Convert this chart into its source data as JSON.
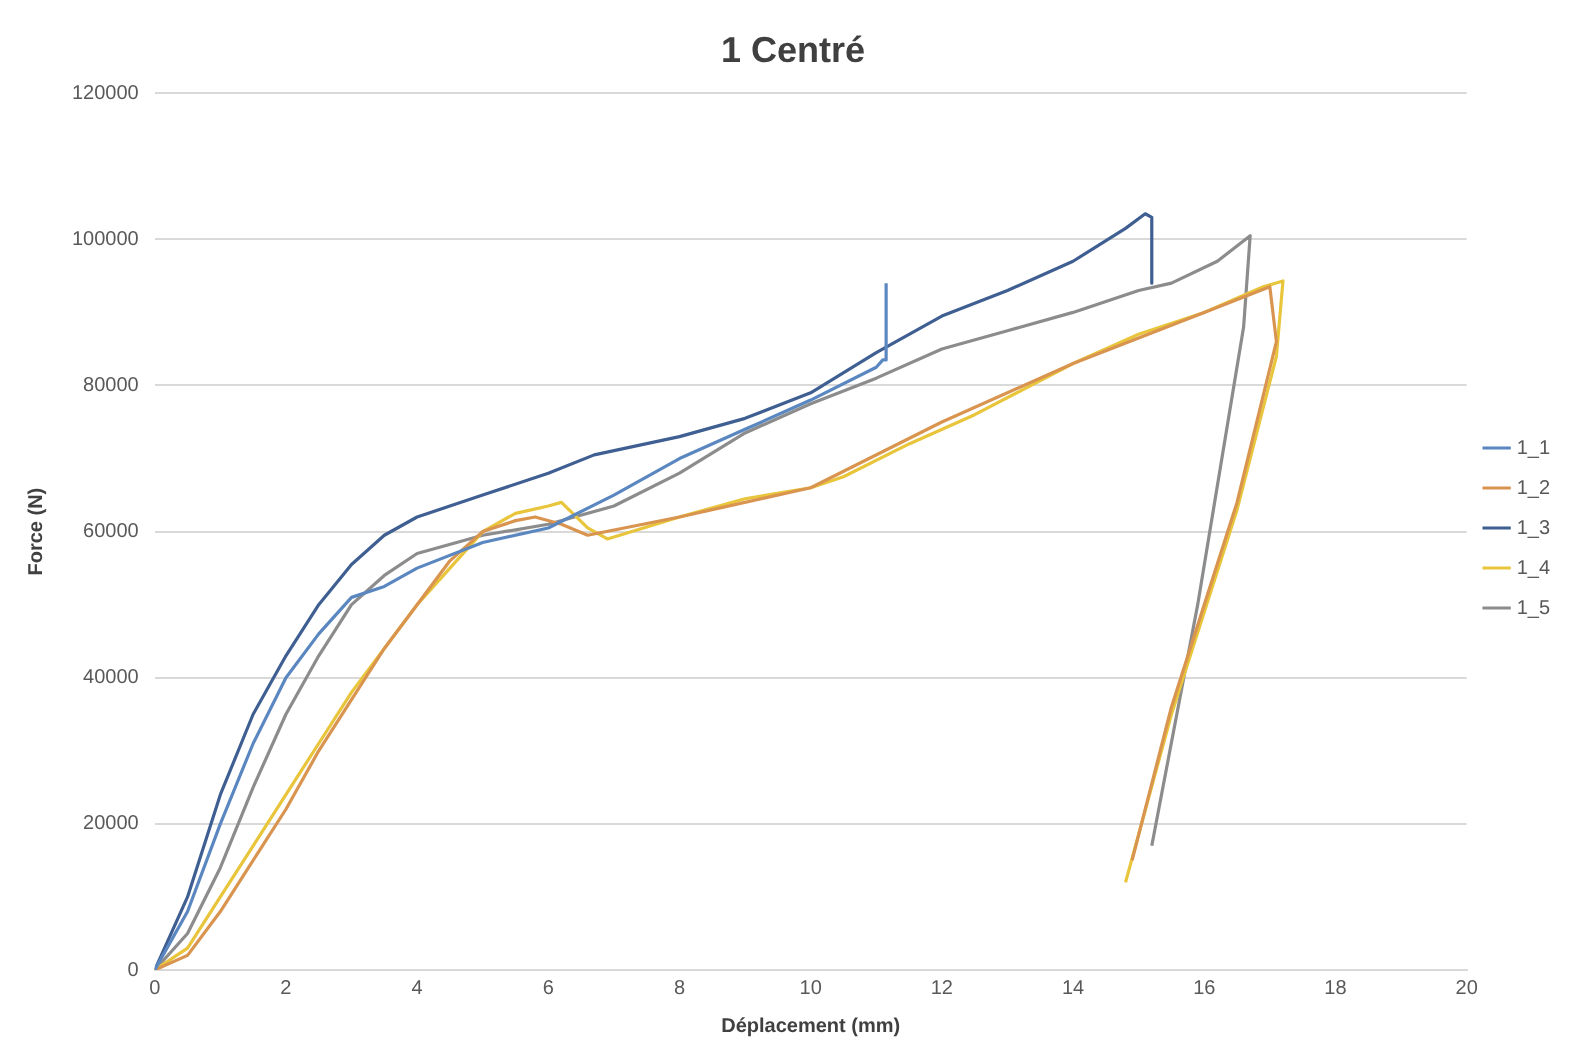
{
  "chart_data": {
    "type": "line",
    "title": "1 Centré",
    "xlabel": "Déplacement (mm)",
    "ylabel": "Force (N)",
    "xlim": [
      0,
      20
    ],
    "xticks": [
      0,
      2,
      4,
      6,
      8,
      10,
      12,
      14,
      16,
      18,
      20
    ],
    "ylim": [
      0,
      120000
    ],
    "yticks": [
      0,
      20000,
      40000,
      60000,
      80000,
      100000,
      120000
    ],
    "grid": "y",
    "legend": "right",
    "marker": "none",
    "line_style": "solid",
    "series": [
      {
        "name": "1_1",
        "color": "#5b87c0",
        "x": [
          0,
          0.5,
          1,
          1.5,
          2,
          2.5,
          3,
          3.5,
          4,
          5,
          6,
          7,
          8,
          9,
          10,
          11,
          11.1,
          11.15,
          11.15
        ],
        "values": [
          0,
          8000,
          20000,
          31000,
          40000,
          46000,
          51000,
          52500,
          55000,
          58500,
          60500,
          65000,
          70000,
          74000,
          78000,
          82500,
          83500,
          83500,
          94000
        ]
      },
      {
        "name": "1_2",
        "color": "#d9944f",
        "x": [
          0,
          0.5,
          1,
          1.5,
          2,
          2.5,
          3,
          3.5,
          4,
          4.5,
          5,
          5.5,
          5.8,
          6.2,
          6.6,
          8,
          10,
          12,
          14,
          16,
          17,
          17.1,
          16.5,
          15.5,
          14.9
        ],
        "values": [
          0,
          2000,
          8000,
          15000,
          22000,
          30000,
          37000,
          44000,
          50000,
          56000,
          60000,
          61500,
          62000,
          61000,
          59500,
          62000,
          66000,
          75000,
          83000,
          90000,
          93500,
          86000,
          64000,
          36000,
          15000
        ]
      },
      {
        "name": "1_3",
        "color": "#3f5f92",
        "x": [
          0,
          0.5,
          1,
          1.5,
          2,
          2.5,
          3,
          3.5,
          4,
          4.5,
          5,
          6,
          6.7,
          8,
          9,
          10,
          11,
          12,
          13,
          14,
          14.8,
          15.1,
          15.2,
          15.2
        ],
        "values": [
          0,
          10000,
          24000,
          35000,
          43000,
          50000,
          55500,
          59500,
          62000,
          63500,
          65000,
          68000,
          70500,
          73000,
          75500,
          79000,
          84500,
          89500,
          93000,
          97000,
          101500,
          103500,
          103000,
          94000
        ]
      },
      {
        "name": "1_4",
        "color": "#e8c53a",
        "x": [
          0,
          0.5,
          1,
          1.5,
          2,
          2.5,
          3,
          3.5,
          4,
          4.5,
          5,
          5.5,
          6,
          6.2,
          6.6,
          6.9,
          8,
          9,
          10,
          10.5,
          11.5,
          12.5,
          14,
          15,
          16,
          16.9,
          17.2,
          17.1,
          16.5,
          15.5,
          14.8
        ],
        "values": [
          0,
          3000,
          10000,
          17000,
          24000,
          31000,
          38000,
          44000,
          50000,
          55000,
          60000,
          62500,
          63500,
          64000,
          60500,
          59000,
          62000,
          64500,
          66000,
          67500,
          72000,
          76000,
          83000,
          87000,
          90000,
          93500,
          94300,
          84000,
          63000,
          35000,
          12000
        ]
      },
      {
        "name": "1_5",
        "color": "#8c8c8c",
        "x": [
          0,
          0.5,
          1,
          1.5,
          2,
          2.5,
          3,
          3.5,
          4,
          5,
          6,
          7,
          8,
          9,
          10,
          11,
          12,
          13,
          14,
          15,
          15.5,
          16.2,
          16.7,
          16.6,
          15.9,
          15.2
        ],
        "values": [
          0,
          5000,
          14000,
          25000,
          35000,
          43000,
          50000,
          54000,
          57000,
          59500,
          61000,
          63500,
          68000,
          73500,
          77500,
          81000,
          85000,
          87500,
          90000,
          93000,
          94000,
          97000,
          100500,
          88000,
          50000,
          17000
        ]
      }
    ]
  }
}
